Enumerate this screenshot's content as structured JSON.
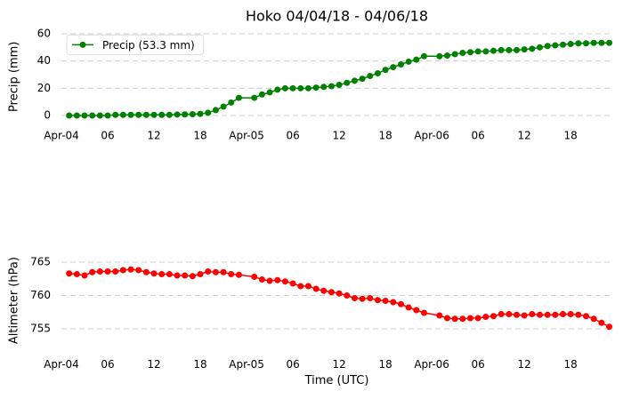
{
  "chart_data": [
    {
      "type": "line",
      "title": "Hoko 04/04/18 - 04/06/18",
      "ylabel": "Precip (mm)",
      "x": [
        1,
        2,
        3,
        4,
        5,
        6,
        7,
        8,
        9,
        10,
        11,
        12,
        13,
        14,
        15,
        16,
        17,
        18,
        19,
        20,
        21,
        22,
        23,
        25,
        26,
        27,
        28,
        29,
        30,
        31,
        32,
        33,
        34,
        35,
        36,
        37,
        38,
        39,
        40,
        41,
        42,
        43,
        44,
        45,
        46,
        47,
        49,
        50,
        51,
        52,
        53,
        54,
        55,
        56,
        57,
        58,
        59,
        60,
        61,
        62,
        63,
        64,
        65,
        66,
        67,
        68,
        69,
        70,
        71
      ],
      "series": [
        {
          "name": "Precip (53.3 mm)",
          "color": "#008000",
          "values": [
            0,
            0,
            0,
            0,
            0,
            0,
            0.5,
            0.5,
            0.5,
            0.5,
            0.5,
            0.5,
            0.5,
            0.5,
            0.7,
            0.8,
            1,
            1.2,
            2,
            4,
            6.5,
            9.5,
            13,
            13,
            15.5,
            17,
            19,
            20,
            20,
            20,
            20,
            20.5,
            21,
            21.5,
            22.5,
            24,
            25.5,
            27,
            29,
            31,
            33.5,
            35.5,
            37.5,
            39.5,
            41,
            43.5,
            43.5,
            44,
            45,
            46,
            46.5,
            47,
            47,
            47.5,
            48,
            48,
            48,
            48.5,
            49,
            50,
            51,
            51.5,
            52,
            52.5,
            53,
            53,
            53.3,
            53.3,
            53.3
          ]
        }
      ],
      "xlim": [
        0,
        71.4
      ],
      "xticks": [
        {
          "value": 0,
          "label": "Apr-04"
        },
        {
          "value": 6,
          "label": "06"
        },
        12,
        18,
        {
          "value": 24,
          "label": "Apr-05"
        },
        {
          "value": 30,
          "label": "06"
        },
        {
          "value": 36,
          "label": "12"
        },
        {
          "value": 42,
          "label": "18"
        },
        {
          "value": 48,
          "label": "Apr-06"
        },
        {
          "value": 54,
          "label": "06"
        },
        {
          "value": 60,
          "label": "12"
        },
        {
          "value": 66,
          "label": "18"
        }
      ],
      "ylim": [
        -6,
        63
      ],
      "yticks": [
        0,
        20,
        40,
        60
      ],
      "grid": true,
      "legend": "upper left"
    },
    {
      "type": "line",
      "ylabel": "Altimeter (hPa)",
      "xlabel": "Time (UTC)",
      "x": [
        1,
        2,
        3,
        4,
        5,
        6,
        7,
        8,
        9,
        10,
        11,
        12,
        13,
        14,
        15,
        16,
        17,
        18,
        19,
        20,
        21,
        22,
        23,
        25,
        26,
        27,
        28,
        29,
        30,
        31,
        32,
        33,
        34,
        35,
        36,
        37,
        38,
        39,
        40,
        41,
        42,
        43,
        44,
        45,
        46,
        47,
        49,
        50,
        51,
        52,
        53,
        54,
        55,
        56,
        57,
        58,
        59,
        60,
        61,
        62,
        63,
        64,
        65,
        66,
        67,
        68,
        69,
        70,
        71
      ],
      "series": [
        {
          "color": "#ff0000",
          "values": [
            763.3,
            763.2,
            763.0,
            763.5,
            763.6,
            763.6,
            763.6,
            763.8,
            763.9,
            763.8,
            763.5,
            763.3,
            763.2,
            763.2,
            763.0,
            763.0,
            762.9,
            763.2,
            763.6,
            763.5,
            763.5,
            763.2,
            763.1,
            762.8,
            762.4,
            762.2,
            762.3,
            762.1,
            761.8,
            761.4,
            761.4,
            761.0,
            760.7,
            760.5,
            760.3,
            760.0,
            759.6,
            759.5,
            759.6,
            759.3,
            759.2,
            759.0,
            758.7,
            758.2,
            757.8,
            757.4,
            757.0,
            756.6,
            756.5,
            756.5,
            756.6,
            756.6,
            756.8,
            756.9,
            757.2,
            757.2,
            757.1,
            757.0,
            757.2,
            757.1,
            757.1,
            757.1,
            757.2,
            757.2,
            757.1,
            756.9,
            756.5,
            755.9,
            755.3
          ]
        }
      ],
      "xlim": [
        0,
        71.4
      ],
      "xticks": [
        {
          "value": 0,
          "label": "Apr-04"
        },
        {
          "value": 6,
          "label": "06"
        },
        12,
        18,
        {
          "value": 24,
          "label": "Apr-05"
        },
        {
          "value": 30,
          "label": "06"
        },
        {
          "value": 36,
          "label": "12"
        },
        {
          "value": 42,
          "label": "18"
        },
        {
          "value": 48,
          "label": "Apr-06"
        },
        {
          "value": 54,
          "label": "06"
        },
        {
          "value": 60,
          "label": "12"
        },
        {
          "value": 66,
          "label": "18"
        }
      ],
      "ylim": [
        751.5,
        767
      ],
      "yticks": [
        755,
        760,
        765
      ],
      "grid": true
    }
  ]
}
